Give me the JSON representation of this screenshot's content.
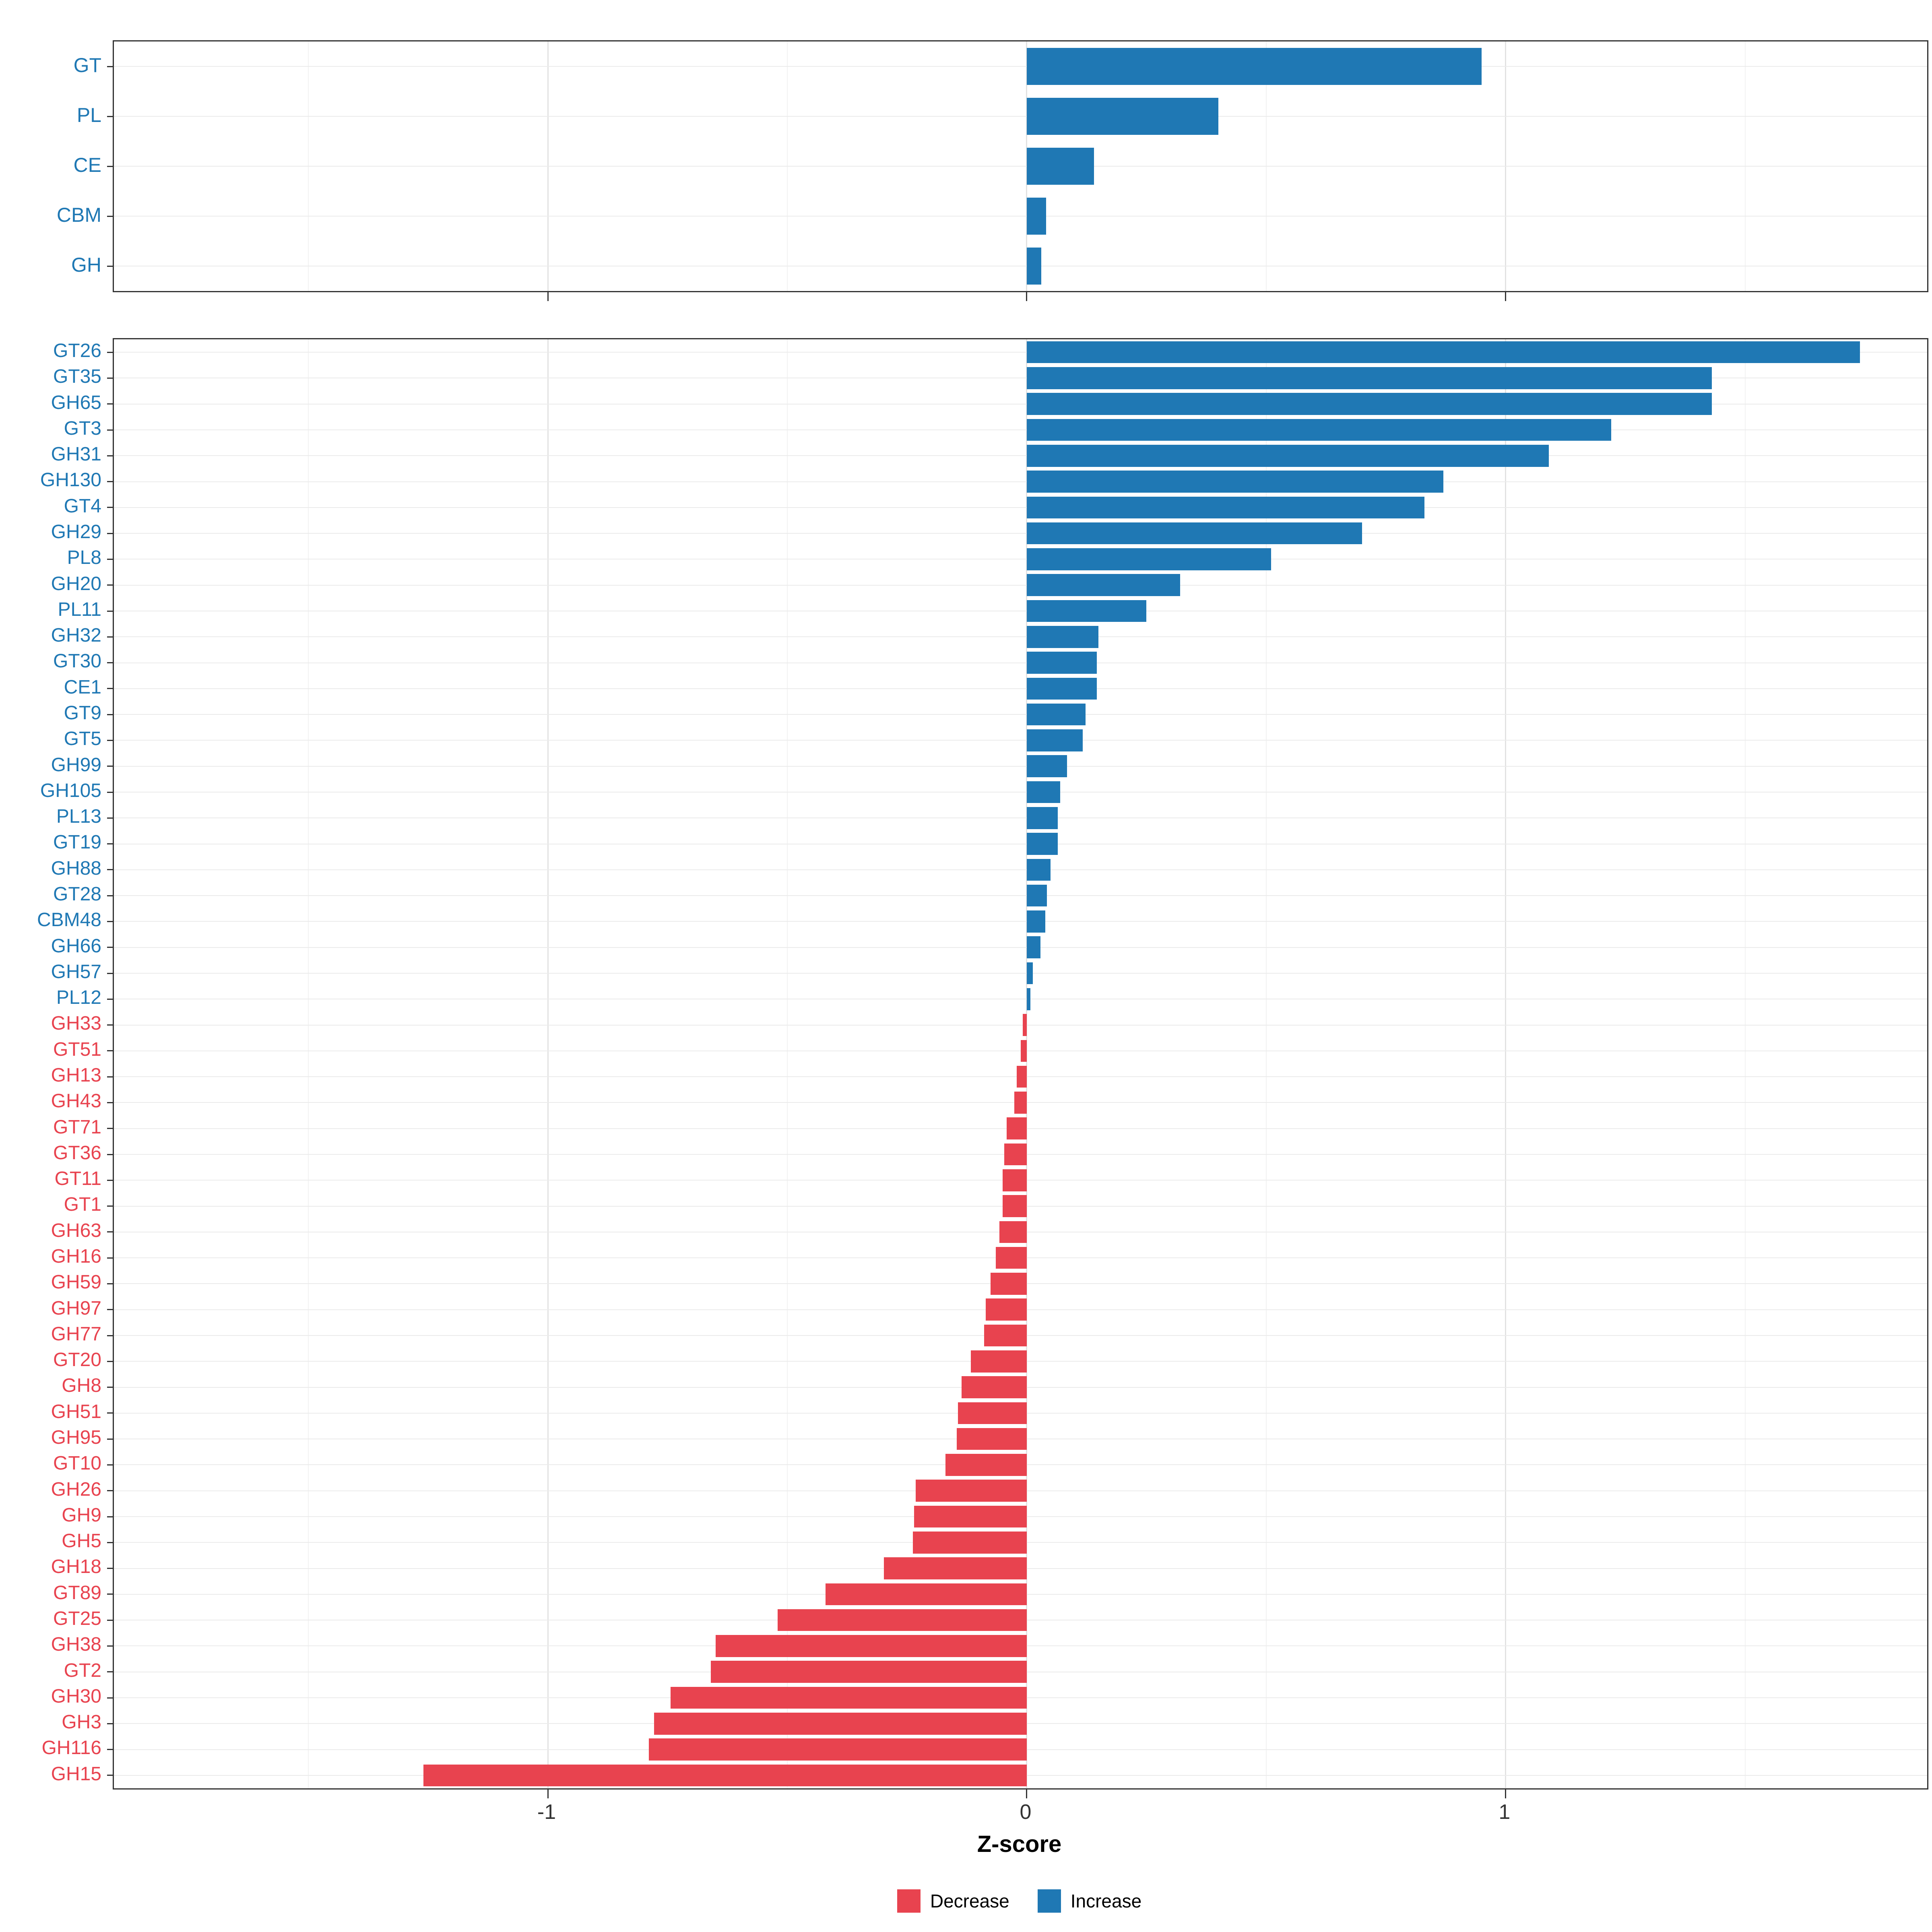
{
  "axis": {
    "xlabel": "Z-score",
    "ticks": [
      -1,
      0,
      1
    ],
    "tick_labels": [
      "-1",
      "0",
      "1"
    ],
    "minor_ticks": [
      -1.5,
      -0.5,
      0.5,
      1.5
    ],
    "xlim": [
      -1.906,
      1.88
    ],
    "grid": "on",
    "legend_position": "bottom"
  },
  "colors": {
    "increase": "#1F78B4",
    "decrease": "#E8434F",
    "grid_major": "#E2E2E2",
    "grid_minor": "#F2F2F2",
    "panel_border": "#333333",
    "tick_text": "#333333"
  },
  "legend": {
    "items": [
      {
        "label": "Decrease",
        "key": "decrease"
      },
      {
        "label": "Increase",
        "key": "increase"
      }
    ]
  },
  "chart_data": [
    {
      "type": "bar",
      "orientation": "horizontal",
      "panel": "top",
      "bar_fraction": 0.74,
      "categories": [
        "GT",
        "PL",
        "CE",
        "CBM",
        "GH"
      ],
      "values": [
        0.95,
        0.4,
        0.14,
        0.04,
        0.03
      ]
    },
    {
      "type": "bar",
      "orientation": "horizontal",
      "panel": "bottom",
      "bar_fraction": 0.85,
      "categories": [
        "GT26",
        "GT35",
        "GH65",
        "GT3",
        "GH31",
        "GH130",
        "GT4",
        "GH29",
        "PL8",
        "GH20",
        "PL11",
        "GH32",
        "GT30",
        "CE1",
        "GT9",
        "GT5",
        "GH99",
        "GH105",
        "PL13",
        "GT19",
        "GH88",
        "GT28",
        "CBM48",
        "GH66",
        "GH57",
        "PL12",
        "GH33",
        "GT51",
        "GH13",
        "GH43",
        "GT71",
        "GT36",
        "GT11",
        "GT1",
        "GH63",
        "GH16",
        "GH59",
        "GH97",
        "GH77",
        "GT20",
        "GH8",
        "GH51",
        "GH95",
        "GT10",
        "GH26",
        "GH9",
        "GH5",
        "GH18",
        "GT89",
        "GT25",
        "GH38",
        "GT2",
        "GH30",
        "GH3",
        "GH116",
        "GH15"
      ],
      "values": [
        1.74,
        1.43,
        1.43,
        1.22,
        1.09,
        0.87,
        0.83,
        0.7,
        0.51,
        0.32,
        0.25,
        0.15,
        0.146,
        0.146,
        0.123,
        0.117,
        0.084,
        0.07,
        0.065,
        0.065,
        0.05,
        0.042,
        0.039,
        0.029,
        0.013,
        0.008,
        -0.008,
        -0.013,
        -0.021,
        -0.026,
        -0.042,
        -0.047,
        -0.05,
        -0.05,
        -0.057,
        -0.065,
        -0.076,
        -0.086,
        -0.089,
        -0.117,
        -0.136,
        -0.144,
        -0.146,
        -0.17,
        -0.232,
        -0.235,
        -0.238,
        -0.298,
        -0.42,
        -0.52,
        -0.65,
        -0.66,
        -0.744,
        -0.778,
        -0.789,
        -1.26
      ]
    }
  ]
}
